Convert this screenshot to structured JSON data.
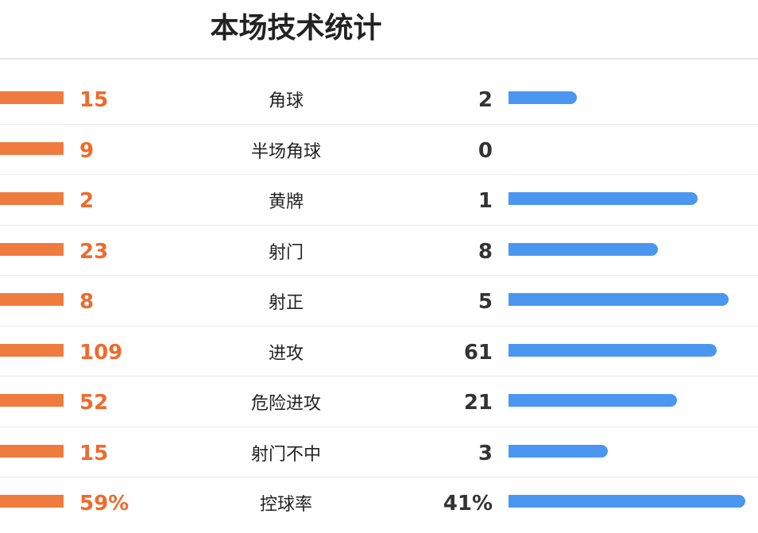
{
  "title": "本场技术统计",
  "colors": {
    "home_bar": "#ef7b3e",
    "home_value": "#ef6a2c",
    "away_bar": "#4a96f0",
    "away_value": "#333333"
  },
  "stats": [
    {
      "home": "15",
      "label": "角球",
      "away": "2",
      "away_bar_fill": 0.29
    },
    {
      "home": "9",
      "label": "半场角球",
      "away": "0",
      "away_bar_fill": 0
    },
    {
      "home": "2",
      "label": "黄牌",
      "away": "1",
      "away_bar_fill": 0.8
    },
    {
      "home": "23",
      "label": "射门",
      "away": "8",
      "away_bar_fill": 0.63
    },
    {
      "home": "8",
      "label": "射正",
      "away": "5",
      "away_bar_fill": 0.93
    },
    {
      "home": "109",
      "label": "进攻",
      "away": "61",
      "away_bar_fill": 0.88
    },
    {
      "home": "52",
      "label": "危险进攻",
      "away": "21",
      "away_bar_fill": 0.71
    },
    {
      "home": "15",
      "label": "射门不中",
      "away": "3",
      "away_bar_fill": 0.42
    },
    {
      "home": "59%",
      "label": "控球率",
      "away": "41%",
      "away_bar_fill": 1.0
    }
  ]
}
